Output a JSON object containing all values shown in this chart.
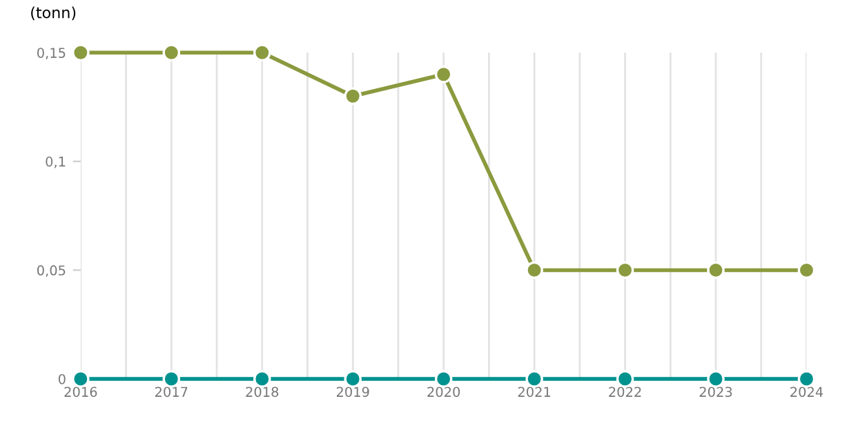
{
  "chart_data": {
    "type": "line",
    "ylabel": "(tonn)",
    "x": [
      2016,
      2017,
      2018,
      2019,
      2020,
      2021,
      2022,
      2023,
      2024
    ],
    "series": [
      {
        "color": "#8a9a3e",
        "values": [
          0.15,
          0.15,
          0.15,
          0.13,
          0.14,
          0.05,
          0.05,
          0.05,
          0.05
        ]
      },
      {
        "color": "#00928f",
        "values": [
          0,
          0,
          0,
          0,
          0,
          0,
          0,
          0,
          0
        ]
      }
    ],
    "xlim": [
      2016,
      2024
    ],
    "xticks": [
      2016,
      {
        "value": 2016.5,
        "label": null
      },
      2017,
      {
        "value": 2017.5,
        "label": null
      },
      2018,
      {
        "value": 2018.5,
        "label": null
      },
      2019,
      {
        "value": 2019.5,
        "label": null
      },
      2020,
      {
        "value": 2020.5,
        "label": null
      },
      2021,
      {
        "value": 2021.5,
        "label": null
      },
      2022,
      {
        "value": 2022.5,
        "label": null
      },
      2023,
      {
        "value": 2023.5,
        "label": null
      },
      2024
    ],
    "ylim": [
      0,
      0.15
    ],
    "yticks": [
      {
        "value": 0,
        "label": "0"
      },
      {
        "value": 0.05,
        "label": "0,05"
      },
      {
        "value": 0.1,
        "label": "0,1"
      },
      {
        "value": 0.15,
        "label": "0,15"
      }
    ],
    "grid": "x",
    "marker": "circle",
    "line_style": "solid",
    "legend": false
  }
}
